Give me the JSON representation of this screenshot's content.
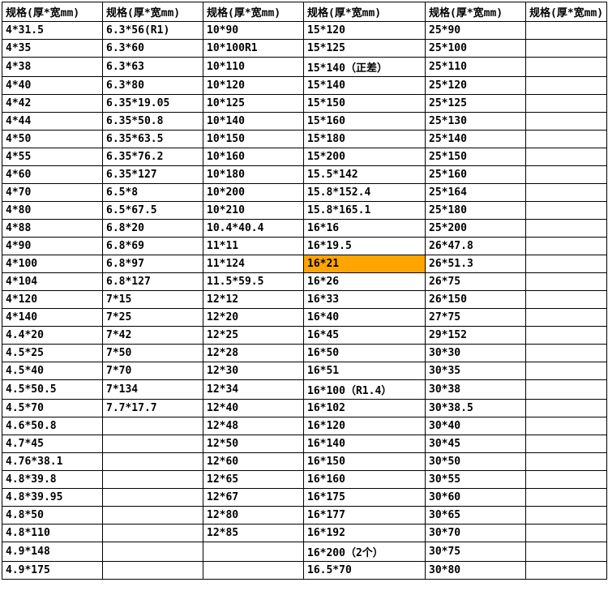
{
  "header_label": "规格(厚*宽mm)",
  "highlight_color": "#ffa500",
  "highlighted_cell": {
    "row": 13,
    "col": 3
  },
  "columns": [
    [
      "4*31.5",
      "4*35",
      "4*38",
      "4*40",
      "4*42",
      "4*44",
      "4*50",
      "4*55",
      "4*60",
      "4*70",
      "4*80",
      "4*88",
      "4*90",
      "4*100",
      "4*104",
      "4*120",
      "4*140",
      "4.4*20",
      "4.5*25",
      "4.5*40",
      "4.5*50.5",
      "4.5*70",
      "4.6*50.8",
      "4.7*45",
      "4.76*38.1",
      "4.8*39.8",
      "4.8*39.95",
      "4.8*50",
      "4.8*110",
      "4.9*148",
      "4.9*175"
    ],
    [
      "6.3*56(R1)",
      "6.3*60",
      "6.3*63",
      "6.3*80",
      "6.35*19.05",
      "6.35*50.8",
      "6.35*63.5",
      "6.35*76.2",
      "6.35*127",
      "6.5*8",
      "6.5*67.5",
      "6.8*20",
      "6.8*69",
      "6.8*97",
      "6.8*127",
      "7*15",
      "7*25",
      "7*42",
      "7*50",
      "7*70",
      "7*134",
      "7.7*17.7",
      "",
      "",
      "",
      "",
      "",
      "",
      "",
      "",
      ""
    ],
    [
      "10*90",
      "10*100R1",
      "10*110",
      "10*120",
      "10*125",
      "10*140",
      "10*150",
      "10*160",
      "10*180",
      "10*200",
      "10*210",
      "10.4*40.4",
      "11*11",
      "11*124",
      "11.5*59.5",
      "12*12",
      "12*20",
      "12*25",
      "12*28",
      "12*30",
      "12*34",
      "12*40",
      "12*48",
      "12*50",
      "12*60",
      "12*65",
      "12*67",
      "12*80",
      "12*85",
      "",
      ""
    ],
    [
      "15*120",
      "15*125",
      "15*140（正差）",
      "15*140",
      "15*150",
      "15*160",
      "15*180",
      "15*200",
      "15.5*142",
      "15.8*152.4",
      "15.8*165.1",
      "16*16",
      "16*19.5",
      "16*21",
      "16*26",
      "16*33",
      "16*40",
      "16*45",
      "16*50",
      "16*51",
      "16*100（R1.4）",
      "16*102",
      "16*120",
      "16*140",
      "16*150",
      "16*160",
      "16*175",
      "16*177",
      "16*192",
      "16*200（2个）",
      "16.5*70"
    ],
    [
      "25*90",
      "25*100",
      "25*110",
      "25*120",
      "25*125",
      "25*130",
      "25*140",
      "25*150",
      "25*160",
      "25*164",
      "25*180",
      "25*200",
      "26*47.8",
      "26*51.3",
      "26*75",
      "26*150",
      "27*75",
      "29*152",
      "30*30",
      "30*35",
      "30*38",
      "30*38.5",
      "30*40",
      "30*45",
      "30*50",
      "30*55",
      "30*60",
      "30*65",
      "30*70",
      "30*75",
      "30*80"
    ],
    [
      "",
      "",
      "",
      "",
      "",
      "",
      "",
      "",
      "",
      "",
      "",
      "",
      "",
      "",
      "",
      "",
      "",
      "",
      "",
      "",
      "",
      "",
      "",
      "",
      "",
      "",
      "",
      "",
      "",
      "",
      ""
    ]
  ]
}
